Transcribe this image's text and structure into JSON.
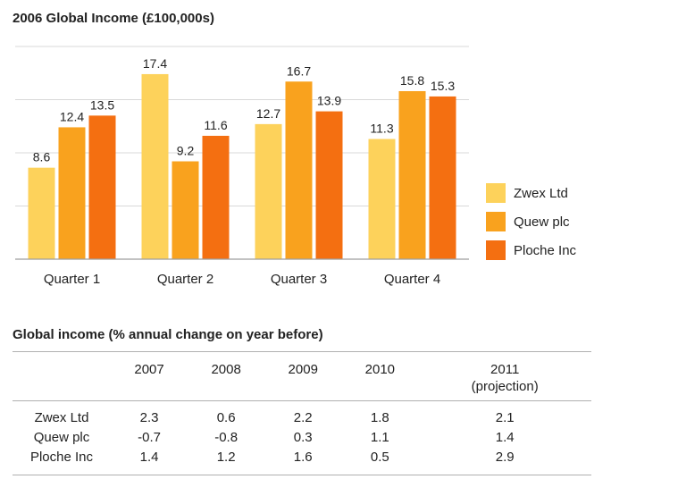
{
  "chart_data": [
    {
      "type": "bar",
      "title": "2006 Global Income (£100,000s)",
      "categories": [
        "Quarter 1",
        "Quarter 2",
        "Quarter 3",
        "Quarter 4"
      ],
      "series": [
        {
          "name": "Zwex Ltd",
          "values": [
            8.6,
            17.4,
            12.7,
            11.3
          ],
          "color": "#FDD25B"
        },
        {
          "name": "Quew plc",
          "values": [
            12.4,
            9.2,
            16.7,
            15.8
          ],
          "color": "#F9A21E"
        },
        {
          "name": "Ploche Inc",
          "values": [
            13.5,
            11.6,
            13.9,
            15.3
          ],
          "color": "#F46F11"
        }
      ],
      "ylim": [
        0,
        20
      ],
      "grid": true,
      "legend": "right"
    },
    {
      "type": "table",
      "title": "Global income (% annual change on year before)",
      "columns": [
        "",
        "2007",
        "2008",
        "2009",
        "2010",
        "2011\n(projection)"
      ],
      "column_labels": [
        {
          "line1": "",
          "line2": ""
        },
        {
          "line1": "2007",
          "line2": ""
        },
        {
          "line1": "2008",
          "line2": ""
        },
        {
          "line1": "2009",
          "line2": ""
        },
        {
          "line1": "2010",
          "line2": ""
        },
        {
          "line1": "2011",
          "line2": "(projection)"
        }
      ],
      "rows": [
        {
          "label": "Zwex Ltd",
          "values": [
            "2.3",
            "0.6",
            "2.2",
            "1.8",
            "2.1"
          ]
        },
        {
          "label": "Quew plc",
          "values": [
            "-0.7",
            "-0.8",
            "0.3",
            "1.1",
            "1.4"
          ]
        },
        {
          "label": "Ploche Inc",
          "values": [
            "1.4",
            "1.2",
            "1.6",
            "0.5",
            "2.9"
          ]
        }
      ]
    }
  ]
}
